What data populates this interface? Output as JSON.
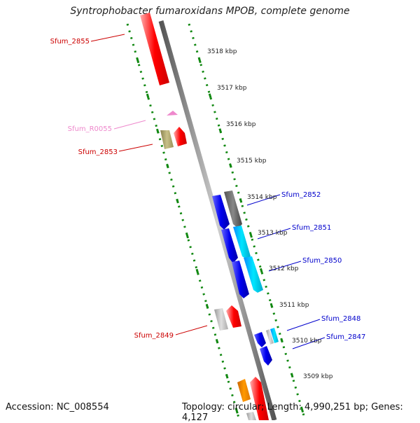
{
  "title": "Syntrophobacter fumaroxidans MPOB, complete genome",
  "footer": {
    "accession": "Accession: NC_008554",
    "summary": "Topology: circular; Length: 4,990,251 bp; Genes: 4,127"
  },
  "scale_labels": [
    "3518 kbp",
    "3517 kbp",
    "3516 kbp",
    "3515 kbp",
    "3514 kbp",
    "3513 kbp",
    "3512 kbp",
    "3511 kbp",
    "3510 kbp",
    "3509 kbp"
  ],
  "gene_labels": [
    {
      "text": "Sfum_2855",
      "color": "#cc0000"
    },
    {
      "text": "Sfum_R0055",
      "color": "#ee88cc"
    },
    {
      "text": "Sfum_2853",
      "color": "#cc0000"
    },
    {
      "text": "Sfum_2852",
      "color": "#0000cc"
    },
    {
      "text": "Sfum_2851",
      "color": "#0000cc"
    },
    {
      "text": "Sfum_2850",
      "color": "#0000cc"
    },
    {
      "text": "Sfum_2849",
      "color": "#cc0000"
    },
    {
      "text": "Sfum_2848",
      "color": "#0000cc"
    },
    {
      "text": "Sfum_2847",
      "color": "#0000cc"
    }
  ],
  "colors": {
    "forward": "#ff0000",
    "reverse": "#0000ee",
    "rna": "#ee88cc",
    "cyan": "#00ccee",
    "gray": "#666666",
    "olive": "#b8b070",
    "orange": "#ff8800",
    "dotted_track": "#118811"
  }
}
